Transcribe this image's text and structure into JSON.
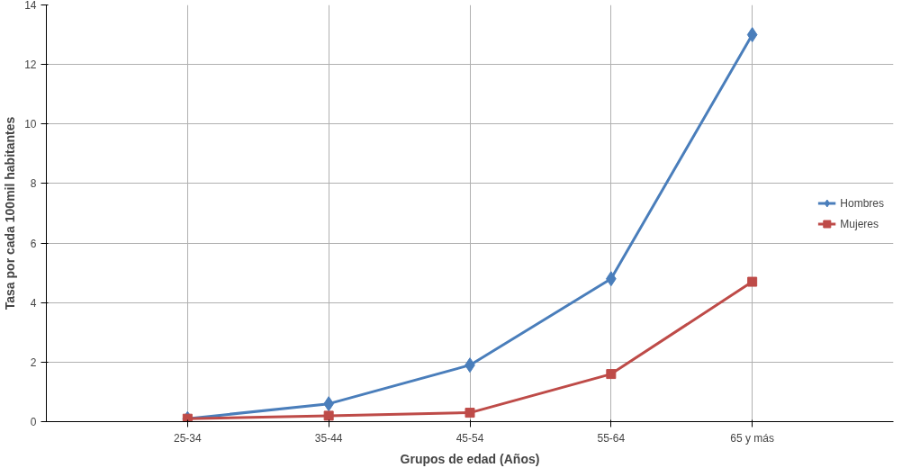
{
  "chart_data": {
    "type": "line",
    "xlabel": "Grupos de edad (Años)",
    "ylabel": "Tasa por cada 100mil habitantes",
    "categories": [
      "25-34",
      "35-44",
      "45-54",
      "55-64",
      "65 y más"
    ],
    "series": [
      {
        "name": "Hombres",
        "color": "#4a7ebb",
        "marker": "diamond",
        "values": [
          0.1,
          0.6,
          1.9,
          4.8,
          13
        ]
      },
      {
        "name": "Mujeres",
        "color": "#be4b48",
        "marker": "square",
        "values": [
          0.1,
          0.2,
          0.3,
          1.6,
          4.7
        ]
      }
    ],
    "ylim": [
      0,
      14
    ],
    "yticks": [
      0,
      2,
      4,
      6,
      8,
      10,
      12,
      14
    ],
    "grid": true,
    "legend": "right",
    "line_style": "solid"
  }
}
